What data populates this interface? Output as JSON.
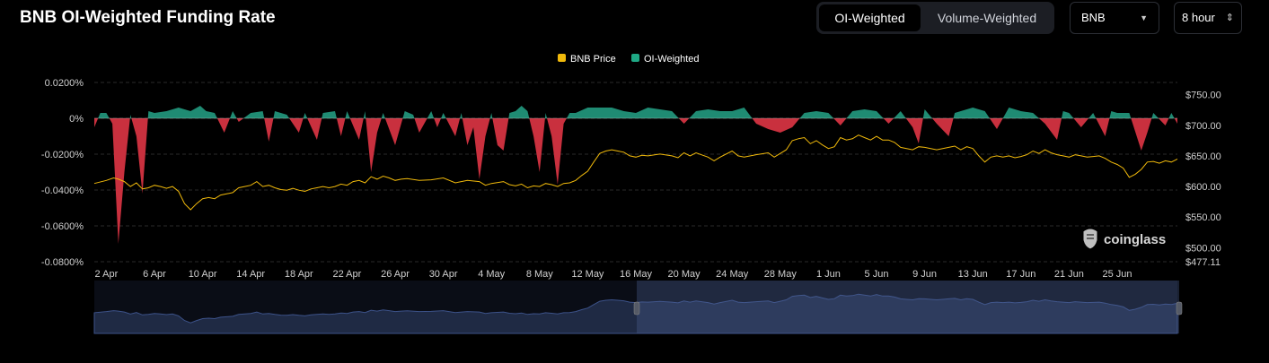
{
  "header": {
    "title": "BNB OI-Weighted Funding Rate",
    "tabs": [
      {
        "label": "OI-Weighted",
        "active": true
      },
      {
        "label": "Volume-Weighted",
        "active": false
      }
    ],
    "coin_select": {
      "value": "BNB",
      "caret_icon": "triangle-down-icon"
    },
    "interval_select": {
      "value": "8 hour",
      "caret_icon": "up-down-chevron-icon"
    }
  },
  "watermark": {
    "text": "coinglass",
    "icon": "coinglass-logo-icon"
  },
  "colors": {
    "price": "#f0b90b",
    "positive": "#1f8b73",
    "negative": "#c9303e",
    "grid": "#2a2a2a",
    "navigator_fill": "#1f2a44",
    "navigator_line": "#3c5289"
  },
  "chart_data": {
    "type": "area",
    "legend": {
      "placement": "top-center",
      "entries": [
        "BNB Price",
        "OI-Weighted"
      ]
    },
    "x_ticks": [
      "2 Apr",
      "6 Apr",
      "10 Apr",
      "14 Apr",
      "18 Apr",
      "22 Apr",
      "26 Apr",
      "30 Apr",
      "4 May",
      "8 May",
      "12 May",
      "16 May",
      "20 May",
      "24 May",
      "28 May",
      "1 Jun",
      "5 Jun",
      "9 Jun",
      "13 Jun",
      "17 Jun",
      "21 Jun",
      "25 Jun"
    ],
    "x_range_days": [
      0,
      90
    ],
    "y_left": {
      "label": "",
      "range": [
        -0.08,
        0.02
      ],
      "tick_labels": [
        "0.0200%",
        "0%",
        "-0.0200%",
        "-0.0400%",
        "-0.0600%",
        "-0.0800%"
      ],
      "tick_values": [
        0.02,
        0,
        -0.02,
        -0.04,
        -0.06,
        -0.08
      ]
    },
    "y_right": {
      "label": "",
      "range": [
        477.11,
        770
      ],
      "tick_labels": [
        "$750.00",
        "$700.00",
        "$650.00",
        "$600.00",
        "$550.00",
        "$500.00",
        "$477.11"
      ],
      "tick_values": [
        750,
        700,
        650,
        600,
        550,
        500,
        477.11
      ]
    },
    "grid": true,
    "series": [
      {
        "name": "OI-Weighted",
        "axis": "left",
        "type": "area",
        "points": [
          [
            0,
            -0.005
          ],
          [
            0.5,
            0.003
          ],
          [
            1,
            0.003
          ],
          [
            1.5,
            -0.003
          ],
          [
            2,
            -0.07
          ],
          [
            2.5,
            -0.03
          ],
          [
            3,
            0.002
          ],
          [
            3.5,
            -0.01
          ],
          [
            4,
            -0.042
          ],
          [
            4.5,
            0.004
          ],
          [
            5,
            0.003
          ],
          [
            6,
            0.004
          ],
          [
            7,
            0.006
          ],
          [
            8,
            0.004
          ],
          [
            8.8,
            0.007
          ],
          [
            9.3,
            0.004
          ],
          [
            10,
            0.003
          ],
          [
            10.8,
            -0.008
          ],
          [
            11.5,
            0.004
          ],
          [
            12,
            -0.002
          ],
          [
            13,
            0.003
          ],
          [
            14,
            0.004
          ],
          [
            14.5,
            -0.013
          ],
          [
            15,
            0.004
          ],
          [
            16,
            0.002
          ],
          [
            17,
            -0.008
          ],
          [
            17.5,
            0.003
          ],
          [
            18.5,
            -0.012
          ],
          [
            19,
            0.003
          ],
          [
            20,
            0.004
          ],
          [
            20.5,
            -0.01
          ],
          [
            21,
            0.004
          ],
          [
            22,
            -0.012
          ],
          [
            22.5,
            0.004
          ],
          [
            23,
            -0.03
          ],
          [
            23.5,
            -0.008
          ],
          [
            24,
            0.003
          ],
          [
            25,
            -0.015
          ],
          [
            25.8,
            0.004
          ],
          [
            26.5,
            0.002
          ],
          [
            27,
            -0.008
          ],
          [
            28,
            0.004
          ],
          [
            28.5,
            -0.005
          ],
          [
            29,
            0.003
          ],
          [
            30,
            -0.01
          ],
          [
            30.5,
            0.003
          ],
          [
            31,
            -0.015
          ],
          [
            31.5,
            -0.005
          ],
          [
            32,
            -0.034
          ],
          [
            32.5,
            -0.01
          ],
          [
            33,
            0.003
          ],
          [
            33.5,
            -0.015
          ],
          [
            34,
            -0.018
          ],
          [
            34.5,
            0.003
          ],
          [
            35,
            0.004
          ],
          [
            35.5,
            0.007
          ],
          [
            36,
            0.004
          ],
          [
            36.5,
            -0.01
          ],
          [
            37,
            -0.03
          ],
          [
            37.5,
            0.003
          ],
          [
            38,
            -0.01
          ],
          [
            38.5,
            -0.037
          ],
          [
            39,
            -0.003
          ],
          [
            39.5,
            0.003
          ],
          [
            40,
            0.003
          ],
          [
            41,
            0.006
          ],
          [
            42,
            0.006
          ],
          [
            43,
            0.006
          ],
          [
            44,
            0.004
          ],
          [
            45,
            0.003
          ],
          [
            46,
            0.006
          ],
          [
            47,
            0.005
          ],
          [
            48,
            0.004
          ],
          [
            49,
            -0.003
          ],
          [
            50,
            0.004
          ],
          [
            51,
            0.005
          ],
          [
            52,
            0.004
          ],
          [
            53,
            0.004
          ],
          [
            54,
            0.006
          ],
          [
            55,
            -0.003
          ],
          [
            56,
            -0.006
          ],
          [
            57,
            -0.008
          ],
          [
            58,
            -0.005
          ],
          [
            59,
            0.003
          ],
          [
            60,
            0.004
          ],
          [
            61,
            0.003
          ],
          [
            62,
            -0.004
          ],
          [
            63,
            0.004
          ],
          [
            64,
            0.005
          ],
          [
            65,
            0.004
          ],
          [
            66,
            -0.003
          ],
          [
            67,
            0.004
          ],
          [
            68,
            -0.005
          ],
          [
            68.5,
            -0.014
          ],
          [
            69,
            0.005
          ],
          [
            70,
            -0.003
          ],
          [
            71,
            -0.01
          ],
          [
            71.5,
            0.003
          ],
          [
            72,
            0.004
          ],
          [
            73,
            0.006
          ],
          [
            74,
            0.004
          ],
          [
            75,
            -0.006
          ],
          [
            76,
            0.006
          ],
          [
            77,
            0.004
          ],
          [
            78,
            0.003
          ],
          [
            79,
            -0.003
          ],
          [
            80,
            -0.012
          ],
          [
            80.5,
            0.004
          ],
          [
            81,
            0.003
          ],
          [
            82,
            -0.005
          ],
          [
            83,
            0.003
          ],
          [
            84,
            -0.01
          ],
          [
            84.5,
            0.004
          ],
          [
            85,
            0.003
          ],
          [
            86,
            0.003
          ],
          [
            87,
            -0.018
          ],
          [
            87.5,
            -0.008
          ],
          [
            88,
            0.003
          ],
          [
            89,
            -0.004
          ],
          [
            89.5,
            0.003
          ],
          [
            90,
            -0.003
          ]
        ]
      },
      {
        "name": "BNB Price",
        "axis": "right",
        "type": "line",
        "points": [
          [
            0,
            605
          ],
          [
            1,
            610
          ],
          [
            1.6,
            614
          ],
          [
            2,
            612
          ],
          [
            2.5,
            608
          ],
          [
            3,
            600
          ],
          [
            3.5,
            606
          ],
          [
            4,
            596
          ],
          [
            4.5,
            598
          ],
          [
            5,
            602
          ],
          [
            5.5,
            600
          ],
          [
            6,
            597
          ],
          [
            6.5,
            600
          ],
          [
            7,
            592
          ],
          [
            7.5,
            572
          ],
          [
            8,
            562
          ],
          [
            8.5,
            572
          ],
          [
            9,
            580
          ],
          [
            9.5,
            582
          ],
          [
            10,
            580
          ],
          [
            10.5,
            586
          ],
          [
            11,
            588
          ],
          [
            11.5,
            590
          ],
          [
            12,
            598
          ],
          [
            12.5,
            600
          ],
          [
            13,
            602
          ],
          [
            13.5,
            608
          ],
          [
            14,
            600
          ],
          [
            14.5,
            602
          ],
          [
            15,
            598
          ],
          [
            15.5,
            595
          ],
          [
            16,
            594
          ],
          [
            16.5,
            597
          ],
          [
            17,
            594
          ],
          [
            17.5,
            592
          ],
          [
            18,
            596
          ],
          [
            18.5,
            598
          ],
          [
            19,
            600
          ],
          [
            19.5,
            598
          ],
          [
            20,
            600
          ],
          [
            20.5,
            604
          ],
          [
            21,
            602
          ],
          [
            21.5,
            608
          ],
          [
            22,
            610
          ],
          [
            22.5,
            606
          ],
          [
            23,
            616
          ],
          [
            23.5,
            612
          ],
          [
            24,
            617
          ],
          [
            24.5,
            614
          ],
          [
            25,
            610
          ],
          [
            25.5,
            612
          ],
          [
            26,
            613
          ],
          [
            27,
            610
          ],
          [
            28,
            611
          ],
          [
            29,
            614
          ],
          [
            30,
            606
          ],
          [
            31,
            610
          ],
          [
            32,
            608
          ],
          [
            32.5,
            602
          ],
          [
            33,
            605
          ],
          [
            34,
            608
          ],
          [
            34.5,
            603
          ],
          [
            35,
            601
          ],
          [
            35.5,
            604
          ],
          [
            36,
            598
          ],
          [
            36.5,
            601
          ],
          [
            37,
            600
          ],
          [
            37.5,
            605
          ],
          [
            38,
            603
          ],
          [
            38.5,
            600
          ],
          [
            39,
            605
          ],
          [
            39.5,
            606
          ],
          [
            40,
            610
          ],
          [
            40.5,
            618
          ],
          [
            41,
            625
          ],
          [
            41.5,
            640
          ],
          [
            42,
            654
          ],
          [
            42.5,
            658
          ],
          [
            43,
            660
          ],
          [
            43.5,
            658
          ],
          [
            44,
            656
          ],
          [
            44.5,
            650
          ],
          [
            45,
            648
          ],
          [
            45.5,
            651
          ],
          [
            46,
            650
          ],
          [
            47,
            653
          ],
          [
            48,
            650
          ],
          [
            48.5,
            647
          ],
          [
            49,
            655
          ],
          [
            49.5,
            650
          ],
          [
            50,
            655
          ],
          [
            51,
            648
          ],
          [
            51.5,
            642
          ],
          [
            52,
            648
          ],
          [
            53,
            658
          ],
          [
            53.5,
            650
          ],
          [
            54,
            648
          ],
          [
            55,
            652
          ],
          [
            56,
            655
          ],
          [
            56.5,
            648
          ],
          [
            57,
            654
          ],
          [
            57.5,
            660
          ],
          [
            58,
            675
          ],
          [
            58.5,
            678
          ],
          [
            59,
            680
          ],
          [
            59.5,
            670
          ],
          [
            60,
            675
          ],
          [
            60.5,
            668
          ],
          [
            61,
            662
          ],
          [
            61.5,
            665
          ],
          [
            62,
            680
          ],
          [
            62.5,
            676
          ],
          [
            63,
            678
          ],
          [
            63.5,
            684
          ],
          [
            64,
            680
          ],
          [
            64.5,
            676
          ],
          [
            65,
            682
          ],
          [
            65.5,
            676
          ],
          [
            66,
            676
          ],
          [
            66.5,
            672
          ],
          [
            67,
            664
          ],
          [
            67.5,
            662
          ],
          [
            68,
            660
          ],
          [
            68.5,
            665
          ],
          [
            69,
            664
          ],
          [
            69.5,
            662
          ],
          [
            70,
            660
          ],
          [
            70.5,
            662
          ],
          [
            71,
            664
          ],
          [
            71.5,
            666
          ],
          [
            72,
            660
          ],
          [
            72.5,
            665
          ],
          [
            73,
            662
          ],
          [
            73.5,
            650
          ],
          [
            74,
            640
          ],
          [
            74.5,
            648
          ],
          [
            75,
            650
          ],
          [
            75.5,
            648
          ],
          [
            76,
            650
          ],
          [
            76.5,
            647
          ],
          [
            77,
            649
          ],
          [
            77.5,
            652
          ],
          [
            78,
            658
          ],
          [
            78.5,
            654
          ],
          [
            79,
            660
          ],
          [
            79.5,
            655
          ],
          [
            80,
            652
          ],
          [
            80.5,
            650
          ],
          [
            81,
            648
          ],
          [
            81.5,
            652
          ],
          [
            82,
            650
          ],
          [
            82.5,
            648
          ],
          [
            83,
            649
          ],
          [
            83.5,
            650
          ],
          [
            84,
            646
          ],
          [
            84.5,
            640
          ],
          [
            85,
            636
          ],
          [
            85.5,
            630
          ],
          [
            86,
            615
          ],
          [
            86.5,
            620
          ],
          [
            87,
            628
          ],
          [
            87.5,
            640
          ],
          [
            88,
            641
          ],
          [
            88.5,
            638
          ],
          [
            89,
            642
          ],
          [
            89.5,
            640
          ],
          [
            90,
            645
          ]
        ]
      }
    ]
  }
}
